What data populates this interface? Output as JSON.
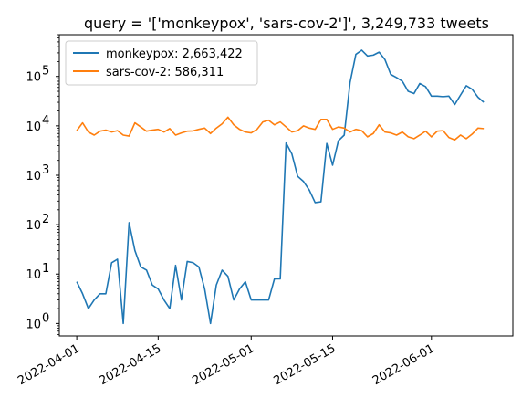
{
  "chart_data": {
    "type": "line",
    "title": "query = '['monkeypox', 'sars-cov-2']', 3,249,733 tweets",
    "xlabel": "",
    "ylabel": "",
    "yscale": "log",
    "xlim": [
      "2022-03-29",
      "2022-06-15"
    ],
    "ylim": [
      0.56,
      700000
    ],
    "legend_position": "top-left",
    "grid": false,
    "x_ticks": [
      "2022-04-01",
      "2022-04-15",
      "2022-05-01",
      "2022-05-15",
      "2022-06-01"
    ],
    "y_ticks": [
      {
        "label": "10",
        "sup": "0",
        "value": 1
      },
      {
        "label": "10",
        "sup": "1",
        "value": 10
      },
      {
        "label": "10",
        "sup": "2",
        "value": 100
      },
      {
        "label": "10",
        "sup": "3",
        "value": 1000
      },
      {
        "label": "10",
        "sup": "4",
        "value": 10000
      },
      {
        "label": "10",
        "sup": "5",
        "value": 100000
      }
    ],
    "x_start": "2022-04-01",
    "series": [
      {
        "name": "monkeypox: 2,663,422",
        "color": "#1f77b4",
        "values": [
          7,
          4,
          2,
          3,
          4,
          4,
          17,
          20,
          1,
          110,
          30,
          14,
          12,
          6,
          5,
          3,
          2,
          15,
          3,
          18,
          17,
          14,
          5,
          1,
          6,
          12,
          9,
          3,
          5,
          7,
          3,
          3,
          3,
          3,
          8,
          8,
          4500,
          2700,
          950,
          750,
          500,
          280,
          290,
          4400,
          1600,
          5000,
          6500,
          75000,
          280000,
          340000,
          260000,
          270000,
          310000,
          220000,
          110000,
          95000,
          80000,
          50000,
          45000,
          72000,
          62000,
          40000,
          40000,
          39000,
          40000,
          27000,
          42000,
          65000,
          55000,
          38000,
          30000
        ]
      },
      {
        "name": "sars-cov-2: 586,311",
        "color": "#ff7f0e",
        "values": [
          8000,
          11500,
          7500,
          6500,
          7800,
          8200,
          7500,
          8000,
          6500,
          6200,
          11500,
          9500,
          7800,
          8200,
          8500,
          7500,
          8800,
          6500,
          7200,
          7800,
          7900,
          8500,
          9000,
          7000,
          9000,
          11000,
          15000,
          10500,
          8500,
          7500,
          7200,
          8500,
          12000,
          13000,
          10500,
          12000,
          9500,
          7500,
          8000,
          10000,
          9000,
          8500,
          13500,
          13500,
          8500,
          9500,
          9000,
          7500,
          8500,
          8000,
          6000,
          7000,
          10500,
          7500,
          7200,
          6500,
          7500,
          6000,
          5500,
          6500,
          7800,
          6000,
          7800,
          8000,
          5800,
          5200,
          6500,
          5500,
          6800,
          9000,
          8800
        ]
      }
    ]
  }
}
